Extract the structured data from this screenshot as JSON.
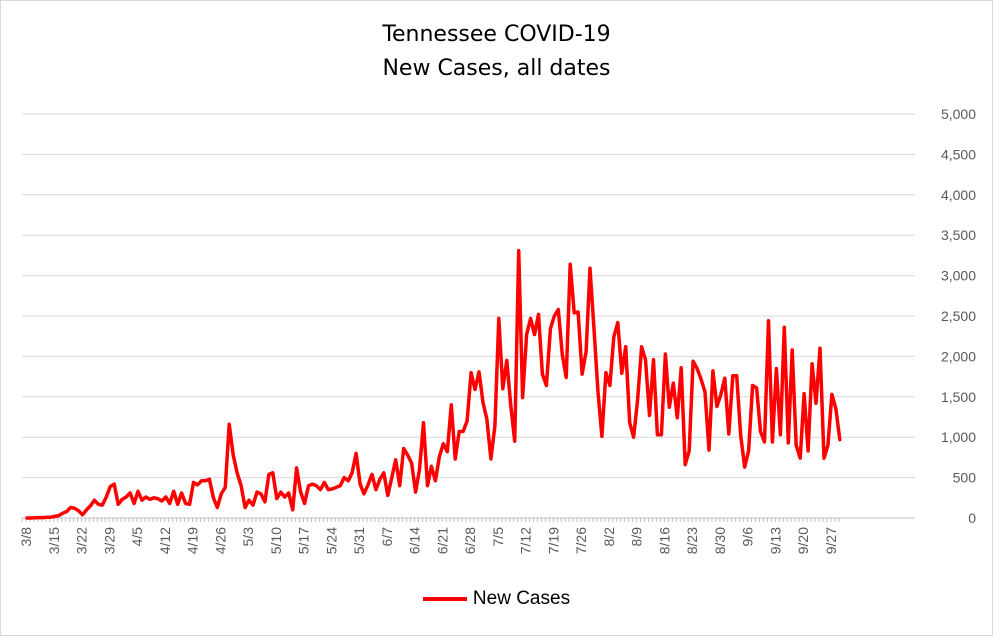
{
  "chart_data": {
    "type": "line",
    "title": "Tennessee COVID-19",
    "subtitle": "New Cases, all dates",
    "xlabel": "",
    "ylabel": "",
    "ylim": [
      0,
      5000
    ],
    "yticks": [
      "0",
      "500",
      "1,000",
      "1,500",
      "2,000",
      "2,500",
      "3,000",
      "3,500",
      "4,000",
      "4,500",
      "5,000"
    ],
    "ytick_values": [
      0,
      500,
      1000,
      1500,
      2000,
      2500,
      3000,
      3500,
      4000,
      4500,
      5000
    ],
    "y_axis_side": "right",
    "grid": true,
    "legend_position": "bottom",
    "x_tick_labels": [
      "3/8",
      "3/15",
      "3/22",
      "3/29",
      "4/5",
      "4/12",
      "4/19",
      "4/26",
      "5/3",
      "5/10",
      "5/17",
      "5/24",
      "5/31",
      "6/7",
      "6/14",
      "6/21",
      "6/28",
      "7/5",
      "7/12",
      "7/19",
      "7/26",
      "8/2",
      "8/9",
      "8/16",
      "8/23",
      "8/30",
      "9/6",
      "9/13",
      "9/20",
      "9/27"
    ],
    "x_start": "3/8",
    "series": [
      {
        "name": "New Cases",
        "color": "#ff0000",
        "values": [
          0,
          0,
          2,
          5,
          5,
          10,
          10,
          20,
          30,
          60,
          80,
          130,
          120,
          90,
          40,
          100,
          150,
          220,
          170,
          160,
          260,
          390,
          420,
          170,
          230,
          260,
          310,
          180,
          330,
          220,
          260,
          230,
          250,
          240,
          210,
          260,
          180,
          330,
          170,
          310,
          180,
          170,
          440,
          410,
          460,
          460,
          480,
          250,
          130,
          300,
          380,
          1160,
          780,
          560,
          400,
          130,
          220,
          160,
          320,
          300,
          200,
          540,
          560,
          240,
          320,
          260,
          310,
          100,
          620,
          320,
          180,
          400,
          420,
          400,
          350,
          440,
          350,
          360,
          380,
          400,
          500,
          460,
          560,
          800,
          420,
          300,
          410,
          540,
          350,
          480,
          560,
          280,
          500,
          720,
          400,
          860,
          780,
          680,
          320,
          600,
          1180,
          400,
          640,
          460,
          760,
          920,
          820,
          1400,
          730,
          1070,
          1070,
          1200,
          1800,
          1590,
          1810,
          1430,
          1220,
          730,
          1140,
          2470,
          1600,
          1950,
          1400,
          950,
          3310,
          1490,
          2270,
          2470,
          2270,
          2520,
          1780,
          1640,
          2340,
          2500,
          2580,
          2020,
          1740,
          3140,
          2540,
          2550,
          1780,
          2060,
          3090,
          2340,
          1560,
          1010,
          1800,
          1640,
          2240,
          2420,
          1790,
          2120,
          1180,
          1000,
          1460,
          2120,
          1960,
          1270,
          1960,
          1030,
          1030,
          2030,
          1370,
          1670,
          1240,
          1860,
          660,
          830,
          1940,
          1850,
          1720,
          1560,
          840,
          1820,
          1380,
          1530,
          1730,
          1040,
          1760,
          1760,
          1020,
          630,
          830,
          1640,
          1610,
          1070,
          940,
          2440,
          940,
          1850,
          1030,
          2360,
          930,
          2080,
          900,
          740,
          1540,
          830,
          1910,
          1420,
          2100,
          740,
          900,
          1530,
          1350,
          970
        ]
      }
    ]
  }
}
